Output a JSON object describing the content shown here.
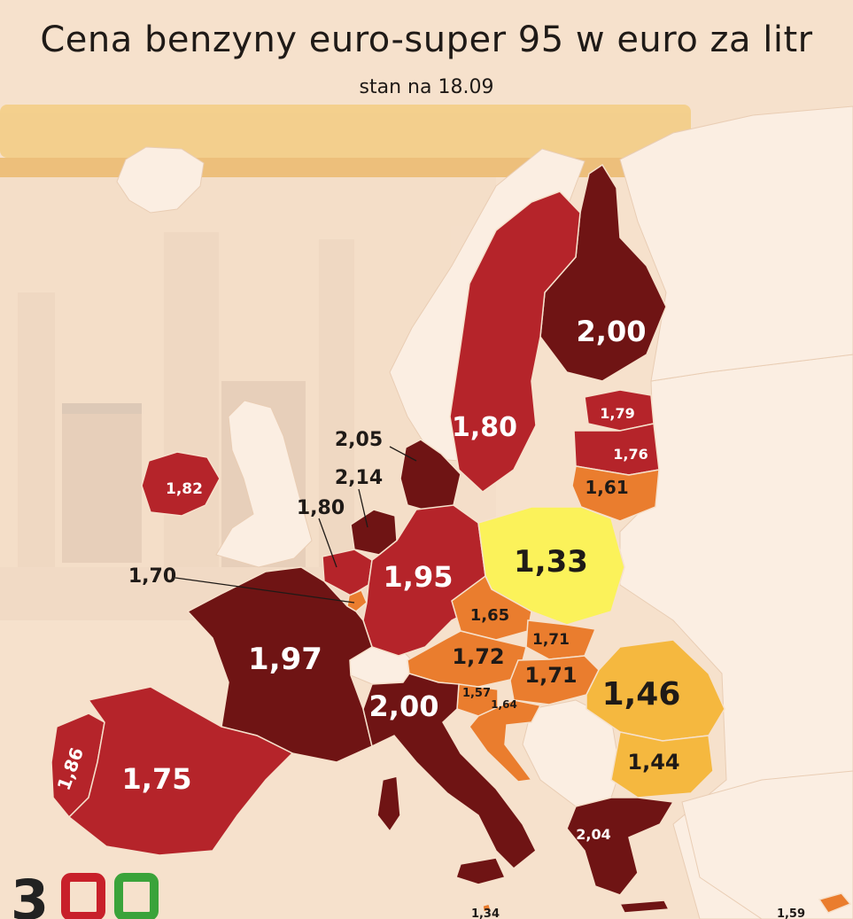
{
  "title": "Cena benzyny euro-super 95 w euro za litr",
  "subtitle": "stan na 18.09",
  "colors": {
    "background": "#f6e1cc",
    "non_eu_land": "#fbeee2",
    "sea_station": "#eedac6",
    "price_darkred": "#6f1414",
    "price_red": "#b5242a",
    "price_orange": "#ea7d2e",
    "price_amber": "#f5b83f",
    "price_yellow": "#fbf25a"
  },
  "countries": [
    {
      "id": "finland",
      "value": "2,00",
      "color": "#6f1414"
    },
    {
      "id": "sweden",
      "value": "1,80",
      "color": "#b5242a"
    },
    {
      "id": "estonia",
      "value": "1,79",
      "color": "#b5242a"
    },
    {
      "id": "latvia",
      "value": "1,76",
      "color": "#b5242a"
    },
    {
      "id": "lithuania",
      "value": "1,61",
      "color": "#ea7d2e"
    },
    {
      "id": "denmark",
      "value": "2,05",
      "color": "#6f1414"
    },
    {
      "id": "netherlands",
      "value": "2,14",
      "color": "#6f1414"
    },
    {
      "id": "belgium",
      "value": "1,80",
      "color": "#b5242a"
    },
    {
      "id": "luxembourg",
      "value": "1,70",
      "color": "#ea7d2e"
    },
    {
      "id": "ireland",
      "value": "1,82",
      "color": "#b5242a"
    },
    {
      "id": "germany",
      "value": "1,95",
      "color": "#b5242a"
    },
    {
      "id": "poland",
      "value": "1,33",
      "color": "#fbf25a"
    },
    {
      "id": "czechia",
      "value": "1,65",
      "color": "#ea7d2e"
    },
    {
      "id": "slovakia",
      "value": "1,71",
      "color": "#ea7d2e"
    },
    {
      "id": "austria",
      "value": "1,72",
      "color": "#ea7d2e"
    },
    {
      "id": "hungary",
      "value": "1,71",
      "color": "#ea7d2e"
    },
    {
      "id": "slovenia",
      "value": "1,57",
      "color": "#ea7d2e"
    },
    {
      "id": "croatia",
      "value": "1,64",
      "color": "#ea7d2e"
    },
    {
      "id": "romania",
      "value": "1,46",
      "color": "#f5b83f"
    },
    {
      "id": "bulgaria",
      "value": "1,44",
      "color": "#f5b83f"
    },
    {
      "id": "france",
      "value": "1,97",
      "color": "#6f1414"
    },
    {
      "id": "italy",
      "value": "2,00",
      "color": "#6f1414"
    },
    {
      "id": "portugal",
      "value": "1,86",
      "color": "#b5242a"
    },
    {
      "id": "spain",
      "value": "1,75",
      "color": "#b5242a"
    },
    {
      "id": "greece",
      "value": "2,04",
      "color": "#6f1414"
    },
    {
      "id": "malta",
      "value": "1,34",
      "color": "#ea7d2e"
    },
    {
      "id": "cyprus",
      "value": "1,59",
      "color": "#ea7d2e"
    }
  ],
  "logo": {
    "text": "300",
    "colors": [
      "#222222",
      "#c8202a",
      "#3aa33a"
    ]
  }
}
